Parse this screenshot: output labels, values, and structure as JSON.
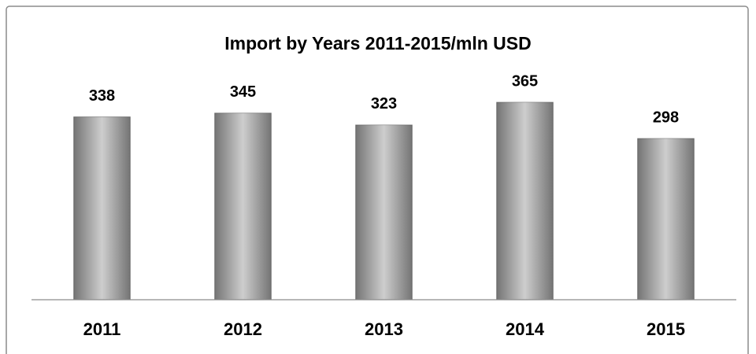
{
  "chart_data": {
    "type": "bar",
    "title": "Import by Years 2011-2015/mln USD",
    "categories": [
      "2011",
      "2012",
      "2013",
      "2014",
      "2015"
    ],
    "values": [
      338,
      345,
      323,
      365,
      298
    ],
    "color": "#b3b3b3",
    "ylim": [
      0,
      400
    ]
  }
}
